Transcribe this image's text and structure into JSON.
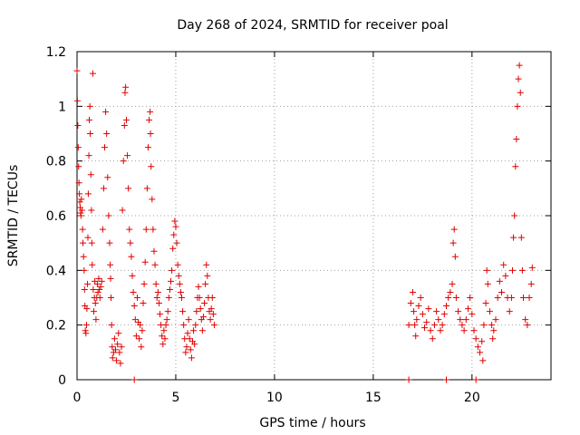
{
  "chart_data": {
    "type": "scatter",
    "title": "Day 268 of 2024, SRMTID for receiver poal",
    "xlabel": "GPS time / hours",
    "ylabel": "SRMTID / TECUs",
    "xlim": [
      0,
      24
    ],
    "ylim": [
      0,
      1.2
    ],
    "xticks": [
      0,
      5,
      10,
      15,
      20
    ],
    "xtick_labels": [
      "0",
      "5",
      "10",
      "15",
      "20"
    ],
    "yticks": [
      0,
      0.2,
      0.4,
      0.6,
      0.8,
      1,
      1.2
    ],
    "ytick_labels": [
      "0",
      "0.2",
      "0.4",
      "0.6",
      "0.8",
      "1",
      "1.2"
    ],
    "grid": true,
    "marker": "+",
    "marker_color": "#e00000",
    "series": [
      {
        "name": "SRMTID",
        "points": [
          [
            0.0,
            1.13
          ],
          [
            0.02,
            1.02
          ],
          [
            0.04,
            0.93
          ],
          [
            0.06,
            0.85
          ],
          [
            0.08,
            0.78
          ],
          [
            0.1,
            0.72
          ],
          [
            0.12,
            0.68
          ],
          [
            0.14,
            0.65
          ],
          [
            0.16,
            0.63
          ],
          [
            0.18,
            0.61
          ],
          [
            0.2,
            0.6
          ],
          [
            0.22,
            0.66
          ],
          [
            0.25,
            0.62
          ],
          [
            0.28,
            0.55
          ],
          [
            0.3,
            0.5
          ],
          [
            0.33,
            0.45
          ],
          [
            0.36,
            0.4
          ],
          [
            0.38,
            0.33
          ],
          [
            0.4,
            0.27
          ],
          [
            0.42,
            0.18
          ],
          [
            0.45,
            0.17
          ],
          [
            0.48,
            0.2
          ],
          [
            0.5,
            0.26
          ],
          [
            0.53,
            0.35
          ],
          [
            0.55,
            0.52
          ],
          [
            0.57,
            0.68
          ],
          [
            0.6,
            0.82
          ],
          [
            0.62,
            0.95
          ],
          [
            0.65,
            1.0
          ],
          [
            0.67,
            0.9
          ],
          [
            0.7,
            0.75
          ],
          [
            0.73,
            0.62
          ],
          [
            0.75,
            0.5
          ],
          [
            0.77,
            0.42
          ],
          [
            0.8,
            1.12
          ],
          [
            0.82,
            0.33
          ],
          [
            0.85,
            0.25
          ],
          [
            0.88,
            0.3
          ],
          [
            0.9,
            0.36
          ],
          [
            0.93,
            0.28
          ],
          [
            0.96,
            0.22
          ],
          [
            1.0,
            0.3
          ],
          [
            1.03,
            0.35
          ],
          [
            1.06,
            0.32
          ],
          [
            1.1,
            0.37
          ],
          [
            1.13,
            0.33
          ],
          [
            1.16,
            0.3
          ],
          [
            1.2,
            0.34
          ],
          [
            1.25,
            0.36
          ],
          [
            1.3,
            0.55
          ],
          [
            1.35,
            0.7
          ],
          [
            1.4,
            0.85
          ],
          [
            1.45,
            0.98
          ],
          [
            1.5,
            0.9
          ],
          [
            1.55,
            0.74
          ],
          [
            1.6,
            0.6
          ],
          [
            1.65,
            0.5
          ],
          [
            1.68,
            0.42
          ],
          [
            1.7,
            0.37
          ],
          [
            1.72,
            0.3
          ],
          [
            1.75,
            0.2
          ],
          [
            1.78,
            0.12
          ],
          [
            1.8,
            0.08
          ],
          [
            1.85,
            0.1
          ],
          [
            1.9,
            0.15
          ],
          [
            1.95,
            0.11
          ],
          [
            2.0,
            0.07
          ],
          [
            2.05,
            0.13
          ],
          [
            2.1,
            0.17
          ],
          [
            2.15,
            0.1
          ],
          [
            2.2,
            0.06
          ],
          [
            2.25,
            0.12
          ],
          [
            2.3,
            0.62
          ],
          [
            2.35,
            0.8
          ],
          [
            2.4,
            0.93
          ],
          [
            2.43,
            1.05
          ],
          [
            2.46,
            1.07
          ],
          [
            2.5,
            0.95
          ],
          [
            2.55,
            0.82
          ],
          [
            2.6,
            0.7
          ],
          [
            2.65,
            0.55
          ],
          [
            2.7,
            0.5
          ],
          [
            2.75,
            0.45
          ],
          [
            2.8,
            0.38
          ],
          [
            2.85,
            0.32
          ],
          [
            2.9,
            0.27
          ],
          [
            2.95,
            0.22
          ],
          [
            3.0,
            0.16
          ],
          [
            3.05,
            0.3
          ],
          [
            3.1,
            0.21
          ],
          [
            3.15,
            0.15
          ],
          [
            3.2,
            0.2
          ],
          [
            3.25,
            0.12
          ],
          [
            3.3,
            0.18
          ],
          [
            3.35,
            0.28
          ],
          [
            3.4,
            0.35
          ],
          [
            3.45,
            0.43
          ],
          [
            3.5,
            0.55
          ],
          [
            3.55,
            0.7
          ],
          [
            3.6,
            0.85
          ],
          [
            3.65,
            0.95
          ],
          [
            3.7,
            0.98
          ],
          [
            3.72,
            0.9
          ],
          [
            3.75,
            0.78
          ],
          [
            3.8,
            0.66
          ],
          [
            3.85,
            0.55
          ],
          [
            3.9,
            0.47
          ],
          [
            3.95,
            0.42
          ],
          [
            4.0,
            0.35
          ],
          [
            4.05,
            0.3
          ],
          [
            4.1,
            0.32
          ],
          [
            4.15,
            0.28
          ],
          [
            4.2,
            0.24
          ],
          [
            4.25,
            0.2
          ],
          [
            4.3,
            0.16
          ],
          [
            4.35,
            0.13
          ],
          [
            4.4,
            0.18
          ],
          [
            4.45,
            0.15
          ],
          [
            4.5,
            0.2
          ],
          [
            4.55,
            0.22
          ],
          [
            4.6,
            0.25
          ],
          [
            4.65,
            0.3
          ],
          [
            4.7,
            0.33
          ],
          [
            4.75,
            0.36
          ],
          [
            4.8,
            0.4
          ],
          [
            4.85,
            0.48
          ],
          [
            4.9,
            0.53
          ],
          [
            4.95,
            0.58
          ],
          [
            5.0,
            0.56
          ],
          [
            5.05,
            0.5
          ],
          [
            5.1,
            0.42
          ],
          [
            5.15,
            0.38
          ],
          [
            5.2,
            0.35
          ],
          [
            5.25,
            0.32
          ],
          [
            5.3,
            0.3
          ],
          [
            5.35,
            0.25
          ],
          [
            5.4,
            0.2
          ],
          [
            5.45,
            0.15
          ],
          [
            5.5,
            0.1
          ],
          [
            5.55,
            0.12
          ],
          [
            5.6,
            0.17
          ],
          [
            5.65,
            0.22
          ],
          [
            5.7,
            0.15
          ],
          [
            5.75,
            0.11
          ],
          [
            5.8,
            0.08
          ],
          [
            5.85,
            0.14
          ],
          [
            5.9,
            0.18
          ],
          [
            5.95,
            0.13
          ],
          [
            6.0,
            0.2
          ],
          [
            6.05,
            0.25
          ],
          [
            6.1,
            0.3
          ],
          [
            6.15,
            0.34
          ],
          [
            6.2,
            0.3
          ],
          [
            6.25,
            0.26
          ],
          [
            6.3,
            0.22
          ],
          [
            6.35,
            0.18
          ],
          [
            6.4,
            0.23
          ],
          [
            6.45,
            0.28
          ],
          [
            6.5,
            0.35
          ],
          [
            6.55,
            0.42
          ],
          [
            6.6,
            0.38
          ],
          [
            6.65,
            0.3
          ],
          [
            6.7,
            0.25
          ],
          [
            6.75,
            0.22
          ],
          [
            6.8,
            0.26
          ],
          [
            6.85,
            0.3
          ],
          [
            6.9,
            0.24
          ],
          [
            6.95,
            0.2
          ],
          [
            2.9,
            0.0
          ],
          [
            16.8,
            0.0
          ],
          [
            18.7,
            0.0
          ],
          [
            20.2,
            0.0
          ],
          [
            16.8,
            0.2
          ],
          [
            16.9,
            0.28
          ],
          [
            17.0,
            0.32
          ],
          [
            17.05,
            0.25
          ],
          [
            17.1,
            0.2
          ],
          [
            17.15,
            0.16
          ],
          [
            17.2,
            0.22
          ],
          [
            17.3,
            0.27
          ],
          [
            17.4,
            0.3
          ],
          [
            17.5,
            0.24
          ],
          [
            17.6,
            0.19
          ],
          [
            17.7,
            0.21
          ],
          [
            17.8,
            0.26
          ],
          [
            17.9,
            0.18
          ],
          [
            18.0,
            0.15
          ],
          [
            18.1,
            0.2
          ],
          [
            18.2,
            0.25
          ],
          [
            18.3,
            0.22
          ],
          [
            18.4,
            0.18
          ],
          [
            18.5,
            0.2
          ],
          [
            18.6,
            0.24
          ],
          [
            18.7,
            0.27
          ],
          [
            18.8,
            0.3
          ],
          [
            18.9,
            0.32
          ],
          [
            19.0,
            0.35
          ],
          [
            19.05,
            0.5
          ],
          [
            19.1,
            0.55
          ],
          [
            19.15,
            0.45
          ],
          [
            19.2,
            0.3
          ],
          [
            19.3,
            0.25
          ],
          [
            19.4,
            0.22
          ],
          [
            19.5,
            0.2
          ],
          [
            19.6,
            0.18
          ],
          [
            19.7,
            0.22
          ],
          [
            19.8,
            0.26
          ],
          [
            19.9,
            0.3
          ],
          [
            20.0,
            0.24
          ],
          [
            20.1,
            0.18
          ],
          [
            20.2,
            0.15
          ],
          [
            20.3,
            0.12
          ],
          [
            20.4,
            0.1
          ],
          [
            20.5,
            0.14
          ],
          [
            20.55,
            0.07
          ],
          [
            20.6,
            0.2
          ],
          [
            20.7,
            0.28
          ],
          [
            20.75,
            0.4
          ],
          [
            20.8,
            0.35
          ],
          [
            20.9,
            0.25
          ],
          [
            21.0,
            0.2
          ],
          [
            21.05,
            0.15
          ],
          [
            21.1,
            0.18
          ],
          [
            21.2,
            0.22
          ],
          [
            21.3,
            0.3
          ],
          [
            21.4,
            0.36
          ],
          [
            21.5,
            0.32
          ],
          [
            21.6,
            0.42
          ],
          [
            21.7,
            0.38
          ],
          [
            21.8,
            0.3
          ],
          [
            21.9,
            0.25
          ],
          [
            22.0,
            0.3
          ],
          [
            22.05,
            0.4
          ],
          [
            22.1,
            0.52
          ],
          [
            22.15,
            0.6
          ],
          [
            22.2,
            0.78
          ],
          [
            22.25,
            0.88
          ],
          [
            22.3,
            1.0
          ],
          [
            22.35,
            1.1
          ],
          [
            22.4,
            1.15
          ],
          [
            22.45,
            1.05
          ],
          [
            22.5,
            0.52
          ],
          [
            22.55,
            0.4
          ],
          [
            22.6,
            0.3
          ],
          [
            22.7,
            0.22
          ],
          [
            22.8,
            0.2
          ],
          [
            22.9,
            0.3
          ],
          [
            23.0,
            0.35
          ],
          [
            23.05,
            0.41
          ]
        ]
      }
    ]
  }
}
